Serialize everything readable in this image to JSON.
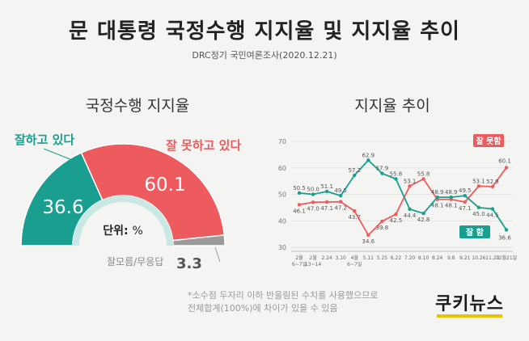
{
  "title": "문 대통령 국정수행 지지율 및 지지율 추이",
  "subtitle": "DRC정기 국민여론조사(2020.12.21)",
  "colors": {
    "positive": "#1a9e8f",
    "negative": "#ee5b5e",
    "undecided": "#9a9a9a"
  },
  "chart_data": [
    {
      "type": "pie",
      "title": "국정수행 지지율",
      "unit_label": "단위: %",
      "slices": [
        {
          "label": "잘하고 있다",
          "value": 36.6,
          "color": "#1a9e8f"
        },
        {
          "label": "잘 못하고 있다",
          "value": 60.1,
          "color": "#ee5b5e"
        },
        {
          "label": "잘모름/무응답",
          "value": 3.3,
          "color": "#9a9a9a"
        }
      ]
    },
    {
      "type": "line",
      "title": "지지율 추이",
      "categories": [
        [
          "2월",
          "6~7일"
        ],
        [
          "2월",
          "13~14"
        ],
        [
          "2.24",
          ""
        ],
        [
          "3.10",
          ""
        ],
        [
          "4월",
          "6~7일"
        ],
        [
          "5.11",
          ""
        ],
        [
          "5.25",
          ""
        ],
        [
          "6.22",
          ""
        ],
        [
          "7.20",
          ""
        ],
        [
          "8.10",
          ""
        ],
        [
          "8.24",
          ""
        ],
        [
          "9.8",
          ""
        ],
        [
          "9.21",
          ""
        ],
        [
          "10.26",
          ""
        ],
        [
          "11.23",
          ""
        ],
        [
          "12월21일",
          ""
        ]
      ],
      "ylim": [
        30,
        70
      ],
      "yticks": [
        30,
        40,
        50,
        60,
        70
      ],
      "grid": true,
      "series": [
        {
          "name": "잘 못함",
          "color": "#ee5b5e",
          "values": [
            46.1,
            47.0,
            47.1,
            47.2,
            43.7,
            34.6,
            39.8,
            42.5,
            53.1,
            55.8,
            48.1,
            48.1,
            47.1,
            53.1,
            52.9,
            60.1
          ]
        },
        {
          "name": "잘 함",
          "color": "#1a9e8f",
          "values": [
            50.5,
            50.0,
            51.1,
            49.5,
            57.2,
            62.9,
            57.9,
            55.8,
            44.4,
            42.8,
            48.9,
            48.9,
            49.5,
            45.0,
            44.5,
            36.6
          ]
        }
      ]
    }
  ],
  "footnote": [
    "*소수점 두자리 이하 반올림된 수치를 사용했으므로",
    "전체합계(100%)에 차이가 있을 수 있음"
  ],
  "logo": "쿠키뉴스"
}
